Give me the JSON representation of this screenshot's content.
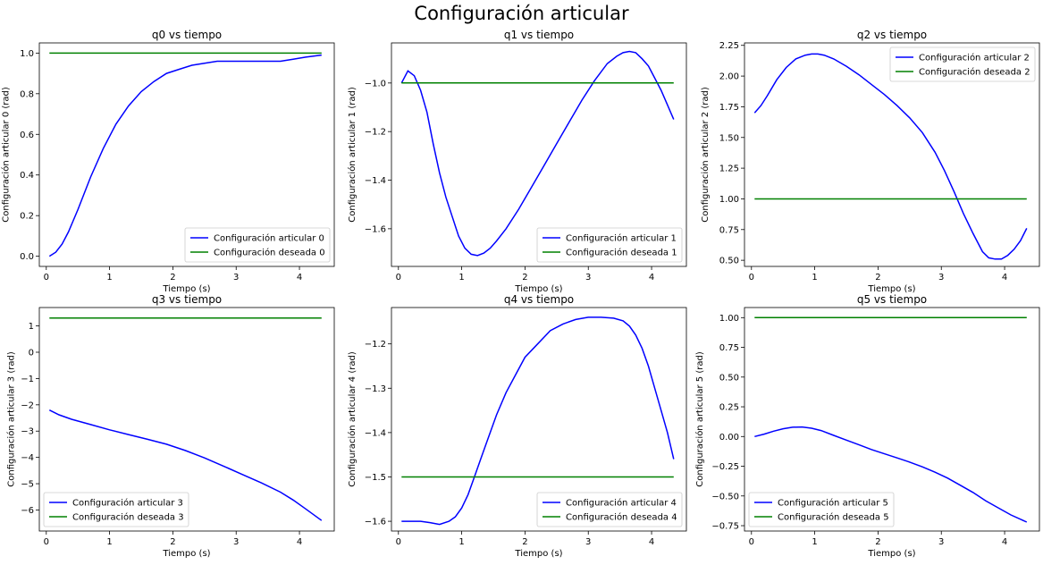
{
  "figure_title": "Configuración articular",
  "colors": {
    "actual": "#0000ff",
    "desired": "#008000"
  },
  "chart_data": [
    {
      "type": "line",
      "title": "q0 vs tiempo",
      "xlabel": "Tiempo (s)",
      "ylabel": "Configuración articular 0 (rad)",
      "xlim": [
        -0.11,
        4.55
      ],
      "ylim": [
        -0.05,
        1.05
      ],
      "xticks": [
        0,
        1,
        2,
        3,
        4
      ],
      "yticks": [
        0.0,
        0.2,
        0.4,
        0.6,
        0.8,
        1.0
      ],
      "ytick_labels": [
        "0.0",
        "0.2",
        "0.4",
        "0.6",
        "0.8",
        "1.0"
      ],
      "legend_position": "lower-right",
      "series": [
        {
          "name": "Configuración articular 0",
          "x": [
            0.05,
            0.15,
            0.25,
            0.35,
            0.5,
            0.7,
            0.9,
            1.1,
            1.3,
            1.5,
            1.7,
            1.9,
            2.1,
            2.3,
            2.5,
            2.7,
            2.9,
            3.1,
            3.3,
            3.5,
            3.7,
            3.9,
            4.1,
            4.35
          ],
          "y": [
            0.0,
            0.02,
            0.06,
            0.12,
            0.23,
            0.39,
            0.53,
            0.65,
            0.74,
            0.81,
            0.86,
            0.9,
            0.92,
            0.94,
            0.95,
            0.96,
            0.96,
            0.96,
            0.96,
            0.96,
            0.96,
            0.97,
            0.98,
            0.99
          ]
        },
        {
          "name": "Configuración deseada 0",
          "x": [
            0.05,
            4.35
          ],
          "y": [
            1.0,
            1.0
          ]
        }
      ]
    },
    {
      "type": "line",
      "title": "q1 vs tiempo",
      "xlabel": "Tiempo (s)",
      "ylabel": "Configuración articular 1 (rad)",
      "xlim": [
        -0.11,
        4.55
      ],
      "ylim": [
        -1.755,
        -0.835
      ],
      "xticks": [
        0,
        1,
        2,
        3,
        4
      ],
      "yticks": [
        -1.6,
        -1.4,
        -1.2,
        -1.0
      ],
      "ytick_labels": [
        "−1.6",
        "−1.4",
        "−1.2",
        "−1.0"
      ],
      "legend_position": "lower-right",
      "series": [
        {
          "name": "Configuración articular 1",
          "x": [
            0.05,
            0.15,
            0.25,
            0.35,
            0.45,
            0.55,
            0.65,
            0.75,
            0.85,
            0.95,
            1.05,
            1.15,
            1.25,
            1.35,
            1.45,
            1.55,
            1.7,
            1.9,
            2.1,
            2.3,
            2.5,
            2.7,
            2.9,
            3.1,
            3.3,
            3.45,
            3.55,
            3.65,
            3.75,
            3.85,
            3.95,
            4.05,
            4.15,
            4.25,
            4.35
          ],
          "y": [
            -1.0,
            -0.95,
            -0.97,
            -1.03,
            -1.12,
            -1.25,
            -1.37,
            -1.47,
            -1.55,
            -1.63,
            -1.68,
            -1.705,
            -1.71,
            -1.7,
            -1.68,
            -1.65,
            -1.6,
            -1.52,
            -1.43,
            -1.34,
            -1.25,
            -1.16,
            -1.07,
            -0.99,
            -0.92,
            -0.89,
            -0.875,
            -0.87,
            -0.875,
            -0.9,
            -0.93,
            -0.98,
            -1.03,
            -1.09,
            -1.15
          ]
        },
        {
          "name": "Configuración deseada 1",
          "x": [
            0.05,
            4.35
          ],
          "y": [
            -1.0,
            -1.0
          ]
        }
      ]
    },
    {
      "type": "line",
      "title": "q2 vs tiempo",
      "xlabel": "Tiempo (s)",
      "ylabel": "Configuración articular 2 (rad)",
      "xlim": [
        -0.11,
        4.55
      ],
      "ylim": [
        0.45,
        2.27
      ],
      "xticks": [
        0,
        1,
        2,
        3,
        4
      ],
      "yticks": [
        0.5,
        0.75,
        1.0,
        1.25,
        1.5,
        1.75,
        2.0,
        2.25
      ],
      "ytick_labels": [
        "0.50",
        "0.75",
        "1.00",
        "1.25",
        "1.50",
        "1.75",
        "2.00",
        "2.25"
      ],
      "legend_position": "upper-right",
      "series": [
        {
          "name": "Configuración articular 2",
          "x": [
            0.05,
            0.15,
            0.25,
            0.4,
            0.55,
            0.7,
            0.85,
            0.95,
            1.05,
            1.15,
            1.3,
            1.5,
            1.7,
            1.9,
            2.1,
            2.3,
            2.5,
            2.7,
            2.9,
            3.05,
            3.2,
            3.35,
            3.5,
            3.65,
            3.75,
            3.85,
            3.95,
            4.05,
            4.15,
            4.25,
            4.35
          ],
          "y": [
            1.7,
            1.76,
            1.84,
            1.97,
            2.07,
            2.14,
            2.17,
            2.18,
            2.18,
            2.17,
            2.14,
            2.08,
            2.01,
            1.93,
            1.85,
            1.76,
            1.66,
            1.54,
            1.38,
            1.23,
            1.06,
            0.88,
            0.72,
            0.57,
            0.52,
            0.51,
            0.51,
            0.54,
            0.59,
            0.66,
            0.76
          ]
        },
        {
          "name": "Configuración deseada 2",
          "x": [
            0.05,
            4.35
          ],
          "y": [
            1.0,
            1.0
          ]
        }
      ]
    },
    {
      "type": "line",
      "title": "q3 vs tiempo",
      "xlabel": "Tiempo (s)",
      "ylabel": "Configuración articular 3 (rad)",
      "xlim": [
        -0.11,
        4.55
      ],
      "ylim": [
        -6.8,
        1.7
      ],
      "xticks": [
        0,
        1,
        2,
        3,
        4
      ],
      "yticks": [
        -6,
        -5,
        -4,
        -3,
        -2,
        -1,
        0,
        1
      ],
      "ytick_labels": [
        "−6",
        "−5",
        "−4",
        "−3",
        "−2",
        "−1",
        "0",
        "1"
      ],
      "legend_position": "lower-left",
      "series": [
        {
          "name": "Configuración articular 3",
          "x": [
            0.05,
            0.2,
            0.4,
            0.7,
            1.0,
            1.3,
            1.6,
            1.9,
            2.2,
            2.5,
            2.8,
            3.1,
            3.4,
            3.7,
            3.9,
            4.1,
            4.35
          ],
          "y": [
            -2.2,
            -2.38,
            -2.55,
            -2.75,
            -2.95,
            -3.13,
            -3.31,
            -3.5,
            -3.74,
            -4.02,
            -4.33,
            -4.65,
            -4.97,
            -5.32,
            -5.62,
            -5.96,
            -6.4
          ]
        },
        {
          "name": "Configuración deseada 3",
          "x": [
            0.05,
            4.35
          ],
          "y": [
            1.3,
            1.3
          ]
        }
      ]
    },
    {
      "type": "line",
      "title": "q4 vs tiempo",
      "xlabel": "Tiempo (s)",
      "ylabel": "Configuración articular 4 (rad)",
      "xlim": [
        -0.11,
        4.55
      ],
      "ylim": [
        -1.622,
        -1.118
      ],
      "xticks": [
        0,
        1,
        2,
        3,
        4
      ],
      "yticks": [
        -1.6,
        -1.5,
        -1.4,
        -1.3,
        -1.2
      ],
      "ytick_labels": [
        "−1.6",
        "−1.5",
        "−1.4",
        "−1.3",
        "−1.2"
      ],
      "legend_position": "lower-right",
      "series": [
        {
          "name": "Configuración articular 4",
          "x": [
            0.05,
            0.2,
            0.35,
            0.5,
            0.65,
            0.8,
            0.9,
            1.0,
            1.1,
            1.2,
            1.3,
            1.4,
            1.55,
            1.7,
            1.85,
            2.0,
            2.2,
            2.4,
            2.6,
            2.8,
            3.0,
            3.2,
            3.4,
            3.55,
            3.65,
            3.75,
            3.85,
            3.95,
            4.05,
            4.15,
            4.25,
            4.35
          ],
          "y": [
            -1.6,
            -1.6,
            -1.6,
            -1.603,
            -1.607,
            -1.6,
            -1.59,
            -1.57,
            -1.54,
            -1.5,
            -1.46,
            -1.42,
            -1.36,
            -1.31,
            -1.27,
            -1.23,
            -1.2,
            -1.17,
            -1.155,
            -1.145,
            -1.14,
            -1.14,
            -1.142,
            -1.148,
            -1.16,
            -1.18,
            -1.21,
            -1.25,
            -1.3,
            -1.35,
            -1.4,
            -1.46
          ]
        },
        {
          "name": "Configuración deseada 4",
          "x": [
            0.05,
            4.35
          ],
          "y": [
            -1.5,
            -1.5
          ]
        }
      ]
    },
    {
      "type": "line",
      "title": "q5 vs tiempo",
      "xlabel": "Tiempo (s)",
      "ylabel": "Configuración articular 5 (rad)",
      "xlim": [
        -0.11,
        4.55
      ],
      "ylim": [
        -0.795,
        1.085
      ],
      "xticks": [
        0,
        1,
        2,
        3,
        4
      ],
      "yticks": [
        -0.75,
        -0.5,
        -0.25,
        0.0,
        0.25,
        0.5,
        0.75,
        1.0
      ],
      "ytick_labels": [
        "−0.75",
        "−0.50",
        "−0.25",
        "0.00",
        "0.25",
        "0.50",
        "0.75",
        "1.00"
      ],
      "legend_position": "lower-left",
      "series": [
        {
          "name": "Configuración articular 5",
          "x": [
            0.05,
            0.2,
            0.35,
            0.5,
            0.65,
            0.8,
            0.95,
            1.1,
            1.3,
            1.5,
            1.7,
            1.9,
            2.1,
            2.3,
            2.5,
            2.7,
            2.9,
            3.1,
            3.3,
            3.5,
            3.7,
            3.9,
            4.1,
            4.35
          ],
          "y": [
            0.0,
            0.02,
            0.045,
            0.065,
            0.078,
            0.08,
            0.07,
            0.05,
            0.01,
            -0.03,
            -0.07,
            -0.11,
            -0.145,
            -0.18,
            -0.215,
            -0.255,
            -0.3,
            -0.35,
            -0.41,
            -0.47,
            -0.54,
            -0.6,
            -0.66,
            -0.72
          ]
        },
        {
          "name": "Configuración deseada 5",
          "x": [
            0.05,
            4.35
          ],
          "y": [
            1.0,
            1.0
          ]
        }
      ]
    }
  ]
}
